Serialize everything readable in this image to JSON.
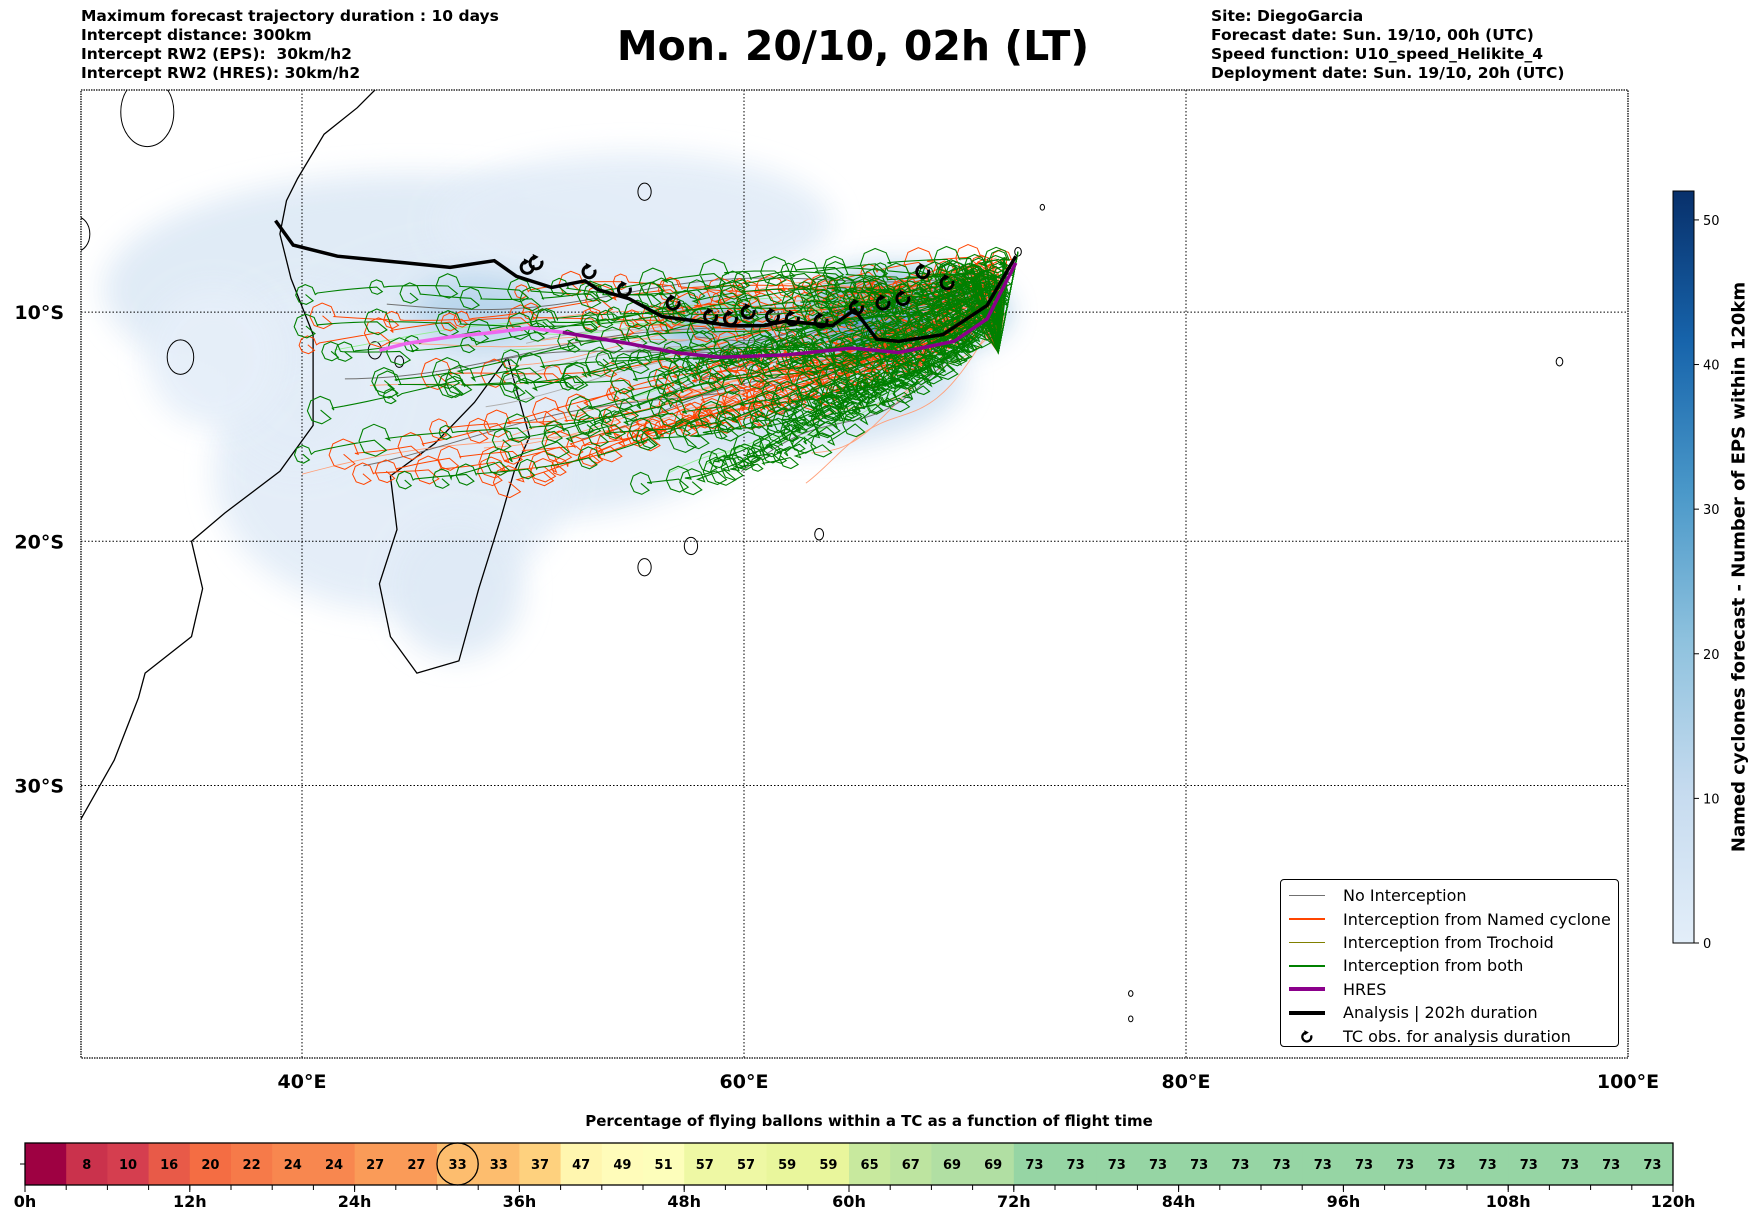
{
  "header": {
    "left": [
      "Maximum forecast trajectory duration : 10 days",
      "Intercept distance: 300km",
      "Intercept RW2 (EPS):  30km/h2",
      "Intercept RW2 (HRES): 30km/h2"
    ],
    "title": "Mon. 20/10, 02h (LT)",
    "right": [
      "Site: DiegoGarcia",
      "Forecast date: Sun. 19/10, 00h (UTC)",
      "Speed function: U10_speed_Helikite_4",
      "Deployment date: Sun. 19/10, 20h (UTC)"
    ]
  },
  "colors": {
    "no_interception": "#707070",
    "named_cyclone": "#ff4500",
    "trochoid": "#808000",
    "both": "#008000",
    "hres": "#8b008b",
    "analysis": "#000000"
  },
  "chart_data": [
    {
      "type": "map",
      "title": "Mon. 20/10, 02h (LT)",
      "lon_range": [
        30,
        100
      ],
      "lat_range": [
        -40,
        0
      ],
      "x_ticks": [
        "40°E",
        "60°E",
        "80°E",
        "100°E"
      ],
      "x_tick_values": [
        40,
        60,
        80,
        100
      ],
      "y_ticks": [
        "10°S",
        "20°S",
        "30°S"
      ],
      "y_tick_values": [
        -10,
        -20,
        -30
      ],
      "grid": true,
      "legend_position": "bottom-right",
      "legend": [
        {
          "label": "No Interception",
          "key": "no_interception",
          "style": "thin"
        },
        {
          "label": "Interception from Named cyclone",
          "key": "named_cyclone",
          "style": "thin"
        },
        {
          "label": "Interception from Trochoid",
          "key": "trochoid",
          "style": "thin"
        },
        {
          "label": "Interception from both",
          "key": "both",
          "style": "thin"
        },
        {
          "label": "HRES",
          "key": "hres",
          "style": "thick"
        },
        {
          "label": "Analysis | 202h duration",
          "key": "analysis",
          "style": "thick"
        },
        {
          "label": "TC obs. for analysis duration",
          "key": "analysis",
          "style": "marker"
        }
      ],
      "site": {
        "name": "DiegoGarcia",
        "lon": 72.4,
        "lat": -7.3
      },
      "analysis_track": [
        [
          38.8,
          -5.9
        ],
        [
          39.6,
          -7.0
        ],
        [
          41.6,
          -7.5
        ],
        [
          44.7,
          -7.8
        ],
        [
          46.7,
          -8.0
        ],
        [
          48.7,
          -7.7
        ],
        [
          49.7,
          -8.4
        ],
        [
          51.3,
          -8.9
        ],
        [
          52.8,
          -8.6
        ],
        [
          53.4,
          -9.0
        ],
        [
          54.8,
          -9.4
        ],
        [
          56.3,
          -10.2
        ],
        [
          57.9,
          -10.4
        ],
        [
          59.4,
          -10.6
        ],
        [
          60.9,
          -10.6
        ],
        [
          61.9,
          -10.4
        ],
        [
          64.0,
          -10.6
        ],
        [
          65.0,
          -9.9
        ],
        [
          66.0,
          -11.2
        ],
        [
          67.0,
          -11.3
        ],
        [
          69.0,
          -11.0
        ],
        [
          71.0,
          -9.7
        ],
        [
          72.3,
          -7.5
        ]
      ],
      "tc_obs": [
        [
          50.2,
          -8.0
        ],
        [
          50.6,
          -7.8
        ],
        [
          53.0,
          -8.2
        ],
        [
          54.6,
          -9.0
        ],
        [
          56.8,
          -9.6
        ],
        [
          58.5,
          -10.2
        ],
        [
          59.4,
          -10.3
        ],
        [
          60.2,
          -10.0
        ],
        [
          61.3,
          -10.2
        ],
        [
          62.2,
          -10.3
        ],
        [
          63.5,
          -10.4
        ],
        [
          65.1,
          -9.8
        ],
        [
          66.3,
          -9.6
        ],
        [
          67.2,
          -9.4
        ],
        [
          68.1,
          -8.2
        ],
        [
          69.2,
          -8.7
        ]
      ],
      "hres_track": [
        [
          43.5,
          -11.7
        ],
        [
          44.7,
          -11.4
        ],
        [
          46.7,
          -11.1
        ],
        [
          48.7,
          -10.9
        ],
        [
          50.3,
          -10.7
        ],
        [
          51.8,
          -10.9
        ],
        [
          54.8,
          -11.4
        ],
        [
          56.9,
          -11.8
        ],
        [
          58.9,
          -12.0
        ],
        [
          61.9,
          -11.9
        ],
        [
          64.9,
          -11.6
        ],
        [
          67.0,
          -11.8
        ],
        [
          69.5,
          -11.3
        ],
        [
          71.0,
          -10.3
        ],
        [
          72.3,
          -7.8
        ]
      ],
      "colorbar": {
        "label": "Named cyclones forecast - Number of EPS within 120km",
        "range": [
          0,
          52
        ],
        "ticks": [
          0,
          10,
          20,
          30,
          40,
          50
        ]
      }
    },
    {
      "type": "heatmap",
      "title": "Percentage of flying ballons within a TC as a function of flight time",
      "x_ticks": [
        "0h",
        "12h",
        "24h",
        "36h",
        "48h",
        "60h",
        "72h",
        "84h",
        "96h",
        "108h",
        "120h"
      ],
      "x_range_hours": [
        0,
        120
      ],
      "bin_hours": 3,
      "values": [
        null,
        8,
        10,
        16,
        20,
        22,
        24,
        24,
        27,
        27,
        33,
        33,
        37,
        47,
        49,
        51,
        57,
        57,
        59,
        59,
        65,
        67,
        69,
        69,
        73,
        73,
        73,
        73,
        73,
        73,
        73,
        73,
        73,
        73,
        73,
        73,
        73,
        73,
        73,
        73
      ],
      "highlight_index": 10,
      "value_range": [
        0,
        100
      ]
    }
  ]
}
